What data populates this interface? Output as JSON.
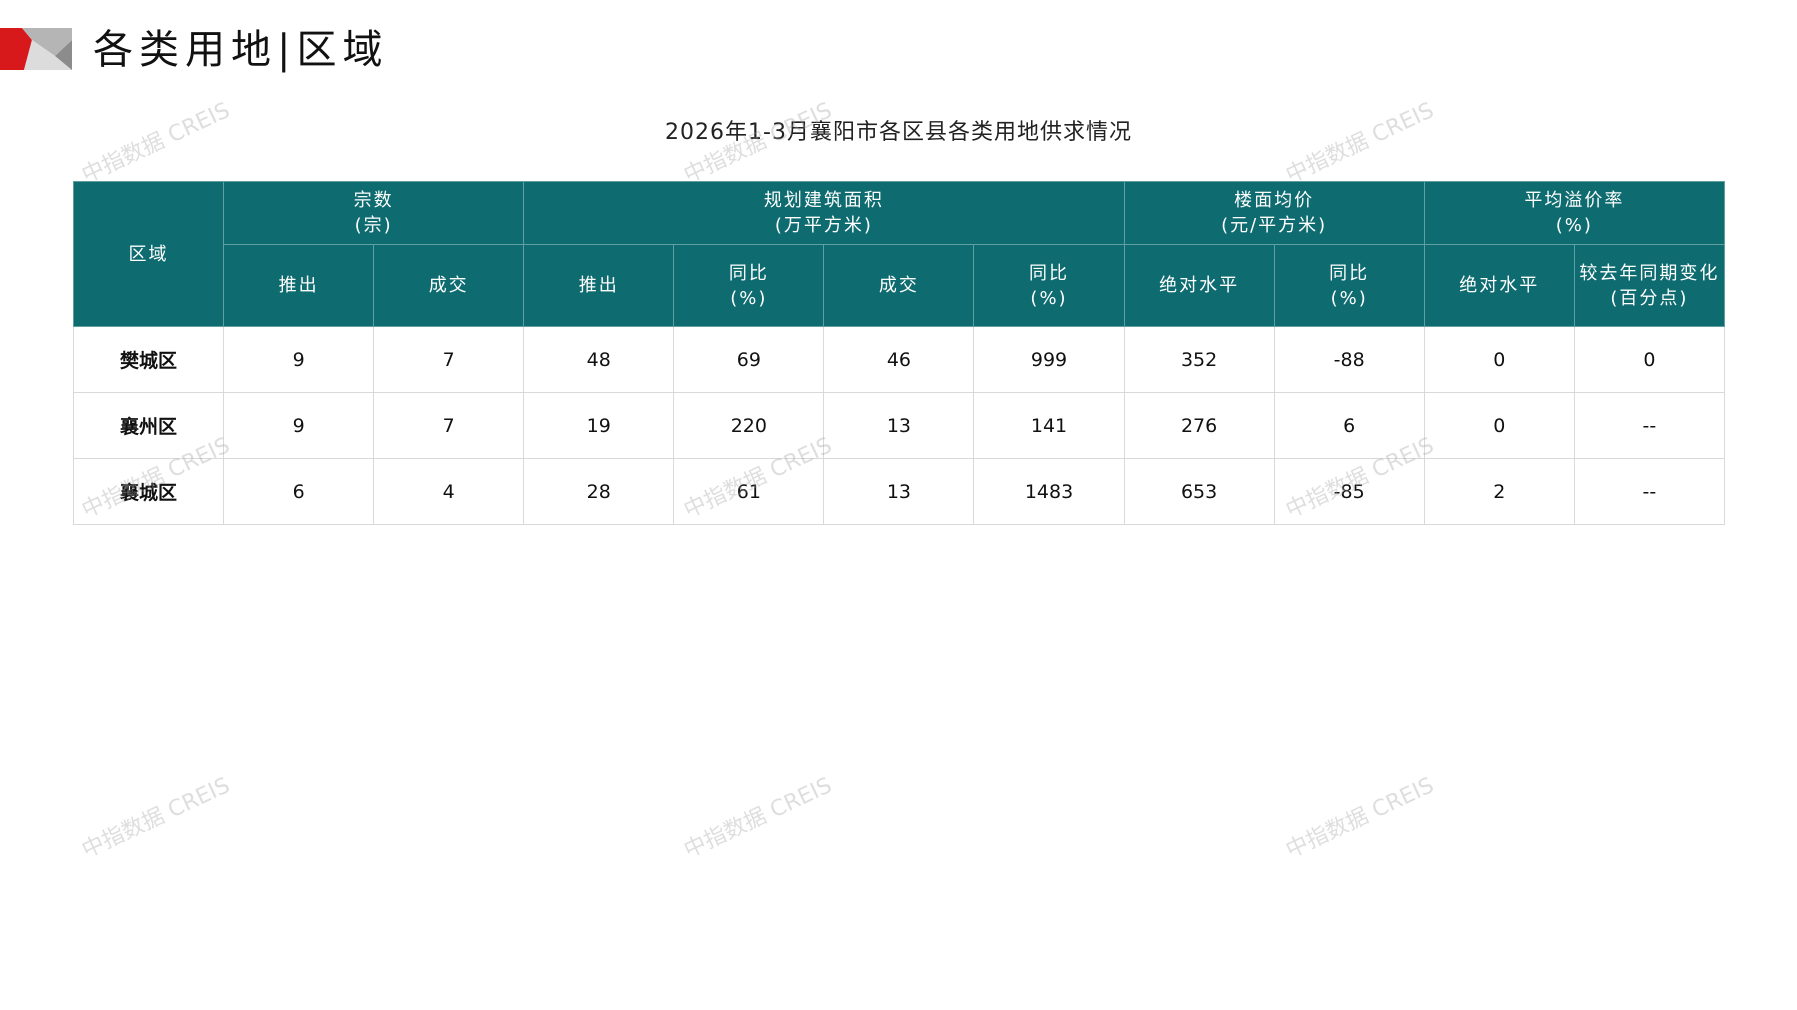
{
  "header": {
    "title": "各类用地|区域"
  },
  "table_title": "2026年1-3月襄阳市各区县各类用地供求情况",
  "watermark": "中指数据 CREIS",
  "colors": {
    "header_bg": "#0e6b70",
    "accent": "#d7191c"
  },
  "columns": {
    "region": "区域",
    "groups": [
      {
        "label": "宗数",
        "unit": "(宗)"
      },
      {
        "label": "规划建筑面积",
        "unit": "(万平方米)"
      },
      {
        "label": "楼面均价",
        "unit": "(元/平方米)"
      },
      {
        "label": "平均溢价率",
        "unit": "(%)"
      }
    ],
    "sub": [
      {
        "l1": "推出",
        "l2": ""
      },
      {
        "l1": "成交",
        "l2": ""
      },
      {
        "l1": "推出",
        "l2": ""
      },
      {
        "l1": "同比",
        "l2": "(%)"
      },
      {
        "l1": "成交",
        "l2": ""
      },
      {
        "l1": "同比",
        "l2": "(%)"
      },
      {
        "l1": "绝对水平",
        "l2": ""
      },
      {
        "l1": "同比",
        "l2": "(%)"
      },
      {
        "l1": "绝对水平",
        "l2": ""
      },
      {
        "l1": "较去年同期变化",
        "l2": "(百分点)"
      }
    ]
  },
  "rows": [
    [
      "樊城区",
      "9",
      "7",
      "48",
      "69",
      "46",
      "999",
      "352",
      "-88",
      "0",
      "0"
    ],
    [
      "襄州区",
      "9",
      "7",
      "19",
      "220",
      "13",
      "141",
      "276",
      "6",
      "0",
      "--"
    ],
    [
      "襄城区",
      "6",
      "4",
      "28",
      "61",
      "13",
      "1483",
      "653",
      "-85",
      "2",
      "--"
    ]
  ]
}
